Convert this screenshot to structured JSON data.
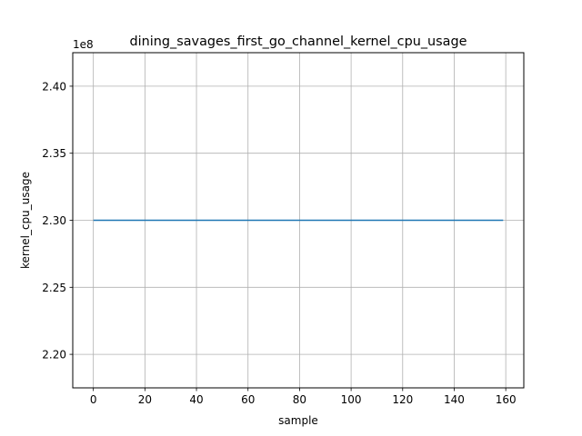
{
  "chart_data": {
    "type": "line",
    "title": "dining_savages_first_go_channel_kernel_cpu_usage",
    "xlabel": "sample",
    "ylabel": "kernel_cpu_usage",
    "y_offset_label": "1e8",
    "grid": true,
    "xlim": [
      -8,
      167
    ],
    "ylim": [
      217500000.0,
      242500000.0
    ],
    "x_ticks": [
      0,
      20,
      40,
      60,
      80,
      100,
      120,
      140,
      160
    ],
    "x_tick_labels": [
      "0",
      "20",
      "40",
      "60",
      "80",
      "100",
      "120",
      "140",
      "160"
    ],
    "y_ticks": [
      220000000.0,
      225000000.0,
      230000000.0,
      235000000.0,
      240000000.0
    ],
    "y_tick_labels": [
      "2.20",
      "2.25",
      "2.30",
      "2.35",
      "2.40"
    ],
    "series": [
      {
        "color": "#1f77b4",
        "x": [
          0,
          159
        ],
        "y": [
          230000000.0,
          230000000.0
        ]
      }
    ]
  }
}
